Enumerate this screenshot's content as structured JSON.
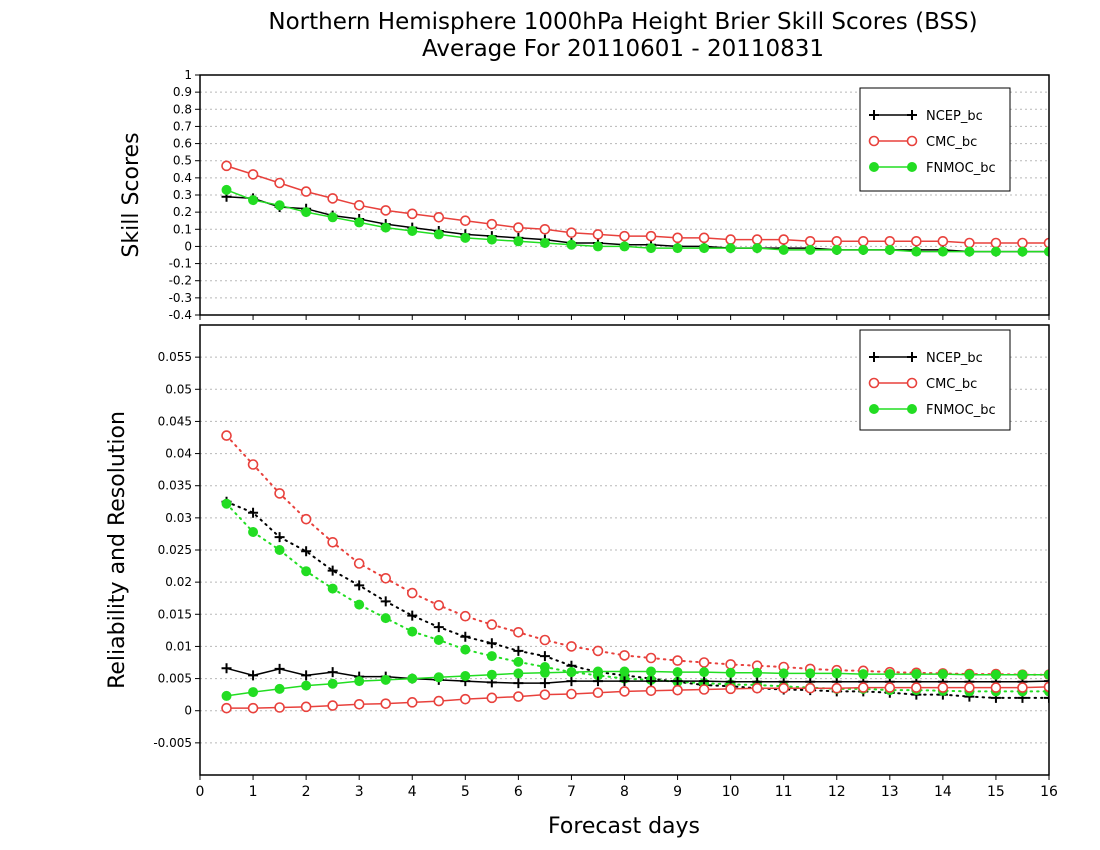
{
  "title_line1": "Northern Hemisphere 1000hPa Height Brier Skill Scores (BSS)",
  "title_line2": "Average For 20110601 - 20110831",
  "xlabel": "Forecast days",
  "colors": {
    "NCEP_bc": "#000000",
    "CMC_bc": "#e8413c",
    "FNMOC_bc": "#22dd22",
    "grid": "#b8b8b8"
  },
  "chart_data": [
    {
      "type": "line",
      "ylabel": "Skill Scores",
      "ylim": [
        -0.4,
        1
      ],
      "xlim": [
        0,
        16
      ],
      "yticks": [
        -0.4,
        -0.3,
        -0.2,
        -0.1,
        0,
        0.1,
        0.2,
        0.3,
        0.4,
        0.5,
        0.6,
        0.7,
        0.8,
        0.9,
        1
      ],
      "ytick_labels": [
        "-0.4",
        "-0.3",
        "-0.2",
        "-0.1",
        "0",
        "0.1",
        "0.2",
        "0.3",
        "0.4",
        "0.5",
        "0.6",
        "0.7",
        "0.8",
        "0.9",
        "1"
      ],
      "xticks": [
        0,
        1,
        2,
        3,
        4,
        5,
        6,
        7,
        8,
        9,
        10,
        11,
        12,
        13,
        14,
        15,
        16
      ],
      "xtick_labels": [],
      "grid": true,
      "legend": "top-right",
      "x": [
        0.5,
        1,
        1.5,
        2,
        2.5,
        3,
        3.5,
        4,
        4.5,
        5,
        5.5,
        6,
        6.5,
        7,
        7.5,
        8,
        8.5,
        9,
        9.5,
        10,
        10.5,
        11,
        11.5,
        12,
        12.5,
        13,
        13.5,
        14,
        14.5,
        15,
        15.5,
        16
      ],
      "series": [
        {
          "name": "NCEP_bc",
          "color": "#000000",
          "marker": "plus",
          "dash": "solid",
          "values": [
            0.29,
            0.28,
            0.23,
            0.22,
            0.18,
            0.16,
            0.13,
            0.11,
            0.09,
            0.07,
            0.06,
            0.05,
            0.04,
            0.02,
            0.02,
            0.01,
            0.01,
            0.0,
            0.0,
            -0.01,
            -0.01,
            -0.01,
            -0.01,
            -0.02,
            -0.02,
            -0.02,
            -0.02,
            -0.02,
            -0.03,
            -0.03,
            -0.03,
            -0.03
          ]
        },
        {
          "name": "CMC_bc",
          "color": "#e8413c",
          "marker": "open-circle",
          "dash": "solid",
          "values": [
            0.47,
            0.42,
            0.37,
            0.32,
            0.28,
            0.24,
            0.21,
            0.19,
            0.17,
            0.15,
            0.13,
            0.11,
            0.1,
            0.08,
            0.07,
            0.06,
            0.06,
            0.05,
            0.05,
            0.04,
            0.04,
            0.04,
            0.03,
            0.03,
            0.03,
            0.03,
            0.03,
            0.03,
            0.02,
            0.02,
            0.02,
            0.02
          ]
        },
        {
          "name": "FNMOC_bc",
          "color": "#22dd22",
          "marker": "filled-circle",
          "dash": "solid",
          "values": [
            0.33,
            0.27,
            0.24,
            0.2,
            0.17,
            0.14,
            0.11,
            0.09,
            0.07,
            0.05,
            0.04,
            0.03,
            0.02,
            0.01,
            0.0,
            0.0,
            -0.01,
            -0.01,
            -0.01,
            -0.01,
            -0.01,
            -0.02,
            -0.02,
            -0.02,
            -0.02,
            -0.02,
            -0.03,
            -0.03,
            -0.03,
            -0.03,
            -0.03,
            -0.03
          ]
        }
      ]
    },
    {
      "type": "line",
      "ylabel": "Reliability and Resolution",
      "ylim": [
        -0.01,
        0.06
      ],
      "xlim": [
        0,
        16
      ],
      "yticks": [
        -0.005,
        0,
        0.005,
        0.01,
        0.015,
        0.02,
        0.025,
        0.03,
        0.035,
        0.04,
        0.045,
        0.05,
        0.055
      ],
      "ytick_labels": [
        "-0.005",
        "0",
        "0.005",
        "0.01",
        "0.015",
        "0.02",
        "0.025",
        "0.03",
        "0.035",
        "0.04",
        "0.045",
        "0.05",
        "0.055"
      ],
      "xticks": [
        0,
        1,
        2,
        3,
        4,
        5,
        6,
        7,
        8,
        9,
        10,
        11,
        12,
        13,
        14,
        15,
        16
      ],
      "xtick_labels": [
        "0",
        "1",
        "2",
        "3",
        "4",
        "5",
        "6",
        "7",
        "8",
        "9",
        "10",
        "11",
        "12",
        "13",
        "14",
        "15",
        "16"
      ],
      "grid": true,
      "legend": "top-right",
      "legend_entries": [
        "NCEP_bc",
        "CMC_bc",
        "FNMOC_bc"
      ],
      "x": [
        0.5,
        1,
        1.5,
        2,
        2.5,
        3,
        3.5,
        4,
        4.5,
        5,
        5.5,
        6,
        6.5,
        7,
        7.5,
        8,
        8.5,
        9,
        9.5,
        10,
        10.5,
        11,
        11.5,
        12,
        12.5,
        13,
        13.5,
        14,
        14.5,
        15,
        15.5,
        16
      ],
      "series": [
        {
          "group": "NCEP_bc",
          "color": "#000000",
          "marker": "plus",
          "dash": "dotted",
          "values": [
            0.0325,
            0.0308,
            0.027,
            0.0248,
            0.0218,
            0.0195,
            0.017,
            0.0148,
            0.013,
            0.0115,
            0.0105,
            0.0093,
            0.0085,
            0.007,
            0.006,
            0.0055,
            0.005,
            0.0045,
            0.004,
            0.0038,
            0.0035,
            0.0033,
            0.0032,
            0.003,
            0.003,
            0.0028,
            0.0025,
            0.0025,
            0.0022,
            0.002,
            0.002,
            0.002
          ]
        },
        {
          "group": "CMC_bc",
          "color": "#e8413c",
          "marker": "open-circle",
          "dash": "dotted",
          "values": [
            0.0428,
            0.0383,
            0.0338,
            0.0298,
            0.0262,
            0.0229,
            0.0206,
            0.0183,
            0.0164,
            0.0147,
            0.0134,
            0.0122,
            0.011,
            0.01,
            0.0093,
            0.0086,
            0.0082,
            0.0078,
            0.0075,
            0.0072,
            0.007,
            0.0068,
            0.0065,
            0.0063,
            0.0062,
            0.006,
            0.0059,
            0.0058,
            0.0057,
            0.0057,
            0.0056,
            0.0056
          ]
        },
        {
          "group": "FNMOC_bc",
          "color": "#22dd22",
          "marker": "filled-circle",
          "dash": "dotted",
          "values": [
            0.0322,
            0.0278,
            0.025,
            0.0217,
            0.019,
            0.0165,
            0.0144,
            0.0123,
            0.011,
            0.0095,
            0.0085,
            0.0076,
            0.0068,
            0.006,
            0.0055,
            0.005,
            0.0048,
            0.0045,
            0.0043,
            0.0041,
            0.004,
            0.0038,
            0.0036,
            0.0034,
            0.0034,
            0.0032,
            0.0032,
            0.0031,
            0.003,
            0.003,
            0.003,
            0.003
          ]
        },
        {
          "group": "NCEP_bc",
          "color": "#000000",
          "marker": "plus",
          "dash": "solid",
          "values": [
            0.0066,
            0.0055,
            0.0065,
            0.0055,
            0.006,
            0.0053,
            0.0053,
            0.005,
            0.0048,
            0.0046,
            0.0044,
            0.0043,
            0.0043,
            0.0046,
            0.0046,
            0.0046,
            0.0046,
            0.0046,
            0.0046,
            0.0045,
            0.0045,
            0.0045,
            0.0045,
            0.0045,
            0.0045,
            0.0045,
            0.0045,
            0.0045,
            0.0045,
            0.0045,
            0.0045,
            0.0046
          ]
        },
        {
          "group": "CMC_bc",
          "color": "#e8413c",
          "marker": "open-circle",
          "dash": "solid",
          "values": [
            0.0004,
            0.0004,
            0.0005,
            0.0006,
            0.0008,
            0.001,
            0.0011,
            0.0013,
            0.0015,
            0.0018,
            0.002,
            0.0022,
            0.0025,
            0.0026,
            0.0028,
            0.003,
            0.0031,
            0.0032,
            0.0033,
            0.0034,
            0.0035,
            0.0035,
            0.0035,
            0.0035,
            0.0036,
            0.0036,
            0.0036,
            0.0036,
            0.0036,
            0.0036,
            0.0036,
            0.0037
          ]
        },
        {
          "group": "FNMOC_bc",
          "color": "#22dd22",
          "marker": "filled-circle",
          "dash": "solid",
          "values": [
            0.0023,
            0.0029,
            0.0034,
            0.0039,
            0.0042,
            0.0046,
            0.0048,
            0.005,
            0.0052,
            0.0054,
            0.0056,
            0.0058,
            0.0059,
            0.006,
            0.0061,
            0.0061,
            0.0061,
            0.006,
            0.006,
            0.0059,
            0.0059,
            0.0058,
            0.0058,
            0.0058,
            0.0057,
            0.0057,
            0.0057,
            0.0057,
            0.0056,
            0.0056,
            0.0056,
            0.0056
          ]
        }
      ]
    }
  ]
}
